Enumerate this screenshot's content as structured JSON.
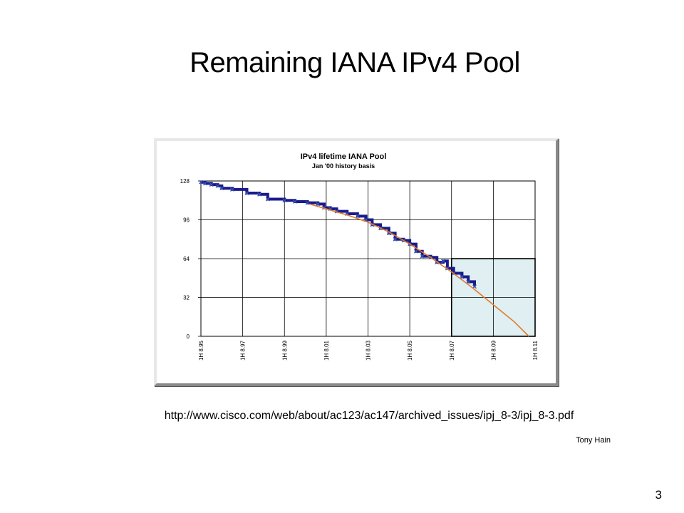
{
  "slide": {
    "title": "Remaining IANA IPv4 Pool",
    "url": "http://www.cisco.com/web/about/ac123/ac147/archived_issues/ipj_8-3/ipj_8-3.pdf",
    "author": "Tony Hain",
    "page_number": "3"
  },
  "chart_data": {
    "type": "line",
    "title": "IPv4 lifetime IANA Pool",
    "subtitle": "Jan '00 history basis",
    "xlabel": "",
    "ylabel": "",
    "xlim": [
      1995,
      2011
    ],
    "ylim": [
      0,
      128
    ],
    "yticks": [
      0,
      32,
      64,
      96,
      128
    ],
    "yticklabels": [
      "0",
      "32",
      "64",
      "96",
      "128"
    ],
    "xticks": [
      1995,
      1997,
      1999,
      2001,
      2003,
      2005,
      2007,
      2009,
      2011
    ],
    "xticklabels": [
      "1H 8.95",
      "1H 8.97",
      "1H 8.99",
      "1H 8.01",
      "1H 8.03",
      "1H 8.05",
      "1H 8.07",
      "1H 8.09",
      "1H 8.11"
    ],
    "grid": true,
    "shaded_region": {
      "x": [
        2007,
        2011
      ],
      "y": [
        0,
        64
      ],
      "color": "#dfeff2"
    },
    "series": [
      {
        "style": "step-markers",
        "color": "#1a1a8c",
        "points": [
          [
            1995.0,
            127
          ],
          [
            1995.2,
            126
          ],
          [
            1995.5,
            125
          ],
          [
            1995.8,
            124
          ],
          [
            1996.0,
            122
          ],
          [
            1996.5,
            121
          ],
          [
            1997.2,
            118
          ],
          [
            1997.8,
            117
          ],
          [
            1998.2,
            113
          ],
          [
            1999.0,
            112
          ],
          [
            1999.5,
            111
          ],
          [
            2000.1,
            110
          ],
          [
            2000.6,
            109
          ],
          [
            2000.9,
            106
          ],
          [
            2001.2,
            105
          ],
          [
            2001.5,
            103
          ],
          [
            2002.0,
            101
          ],
          [
            2002.5,
            99
          ],
          [
            2002.9,
            96
          ],
          [
            2003.2,
            92
          ],
          [
            2003.6,
            89
          ],
          [
            2004.0,
            85
          ],
          [
            2004.3,
            80
          ],
          [
            2004.7,
            79
          ],
          [
            2005.0,
            76
          ],
          [
            2005.3,
            70
          ],
          [
            2005.6,
            66
          ],
          [
            2006.0,
            65
          ],
          [
            2006.3,
            61
          ],
          [
            2006.6,
            62
          ],
          [
            2006.8,
            56
          ],
          [
            2007.1,
            52
          ],
          [
            2007.5,
            49
          ],
          [
            2007.8,
            45
          ],
          [
            2008.1,
            41
          ]
        ]
      },
      {
        "style": "line",
        "color": "#e07b2a",
        "points": [
          [
            2000.2,
            109
          ],
          [
            2001.0,
            105
          ],
          [
            2002.0,
            100
          ],
          [
            2003.0,
            94
          ],
          [
            2004.0,
            86
          ],
          [
            2005.0,
            76
          ],
          [
            2006.0,
            65
          ],
          [
            2007.0,
            53
          ],
          [
            2008.0,
            40
          ],
          [
            2009.0,
            26
          ],
          [
            2010.0,
            12
          ],
          [
            2010.7,
            0
          ]
        ]
      }
    ]
  }
}
